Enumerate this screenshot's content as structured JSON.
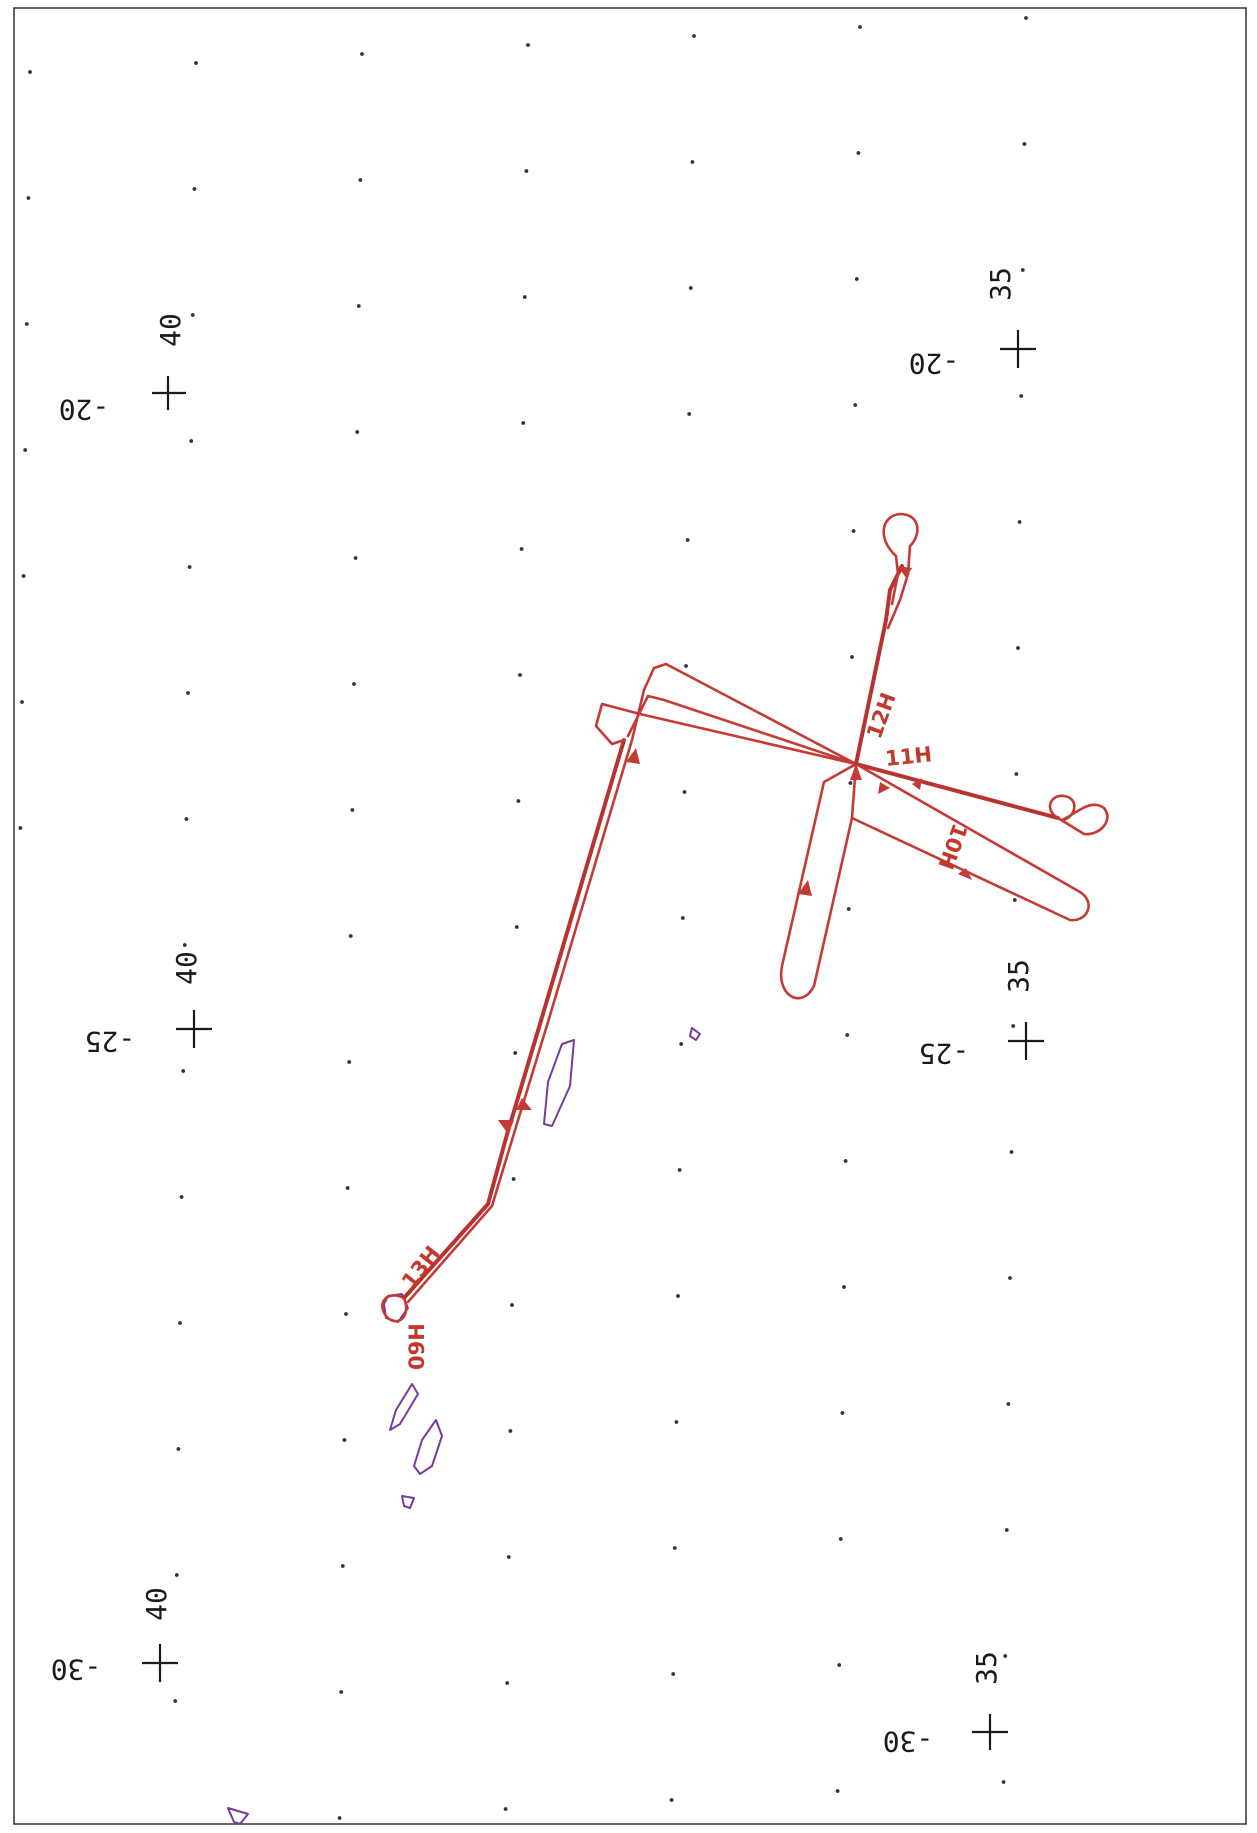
{
  "grid_labels": [
    {
      "id": "lat-m20-west",
      "text": "-20"
    },
    {
      "id": "lon-40-top",
      "text": "40"
    },
    {
      "id": "lat-m20-east",
      "text": "-20"
    },
    {
      "id": "lon-35-top",
      "text": "35"
    },
    {
      "id": "lat-m25-west",
      "text": "-25"
    },
    {
      "id": "lon-40-mid",
      "text": "40"
    },
    {
      "id": "lat-m25-east",
      "text": "-25"
    },
    {
      "id": "lon-35-mid",
      "text": "35"
    },
    {
      "id": "lat-m30-west",
      "text": "-30"
    },
    {
      "id": "lon-40-bottom",
      "text": "40"
    },
    {
      "id": "lat-m30-east",
      "text": "-30"
    },
    {
      "id": "lon-35-bottom",
      "text": "35"
    }
  ],
  "time_labels": {
    "h12": "12H",
    "h11": "11H",
    "h10": "10H",
    "h13": "13H",
    "h09": "09H"
  },
  "colors": {
    "track": "#c43a35",
    "contour": "#7a3a9a",
    "grid": "#1a1a1a",
    "background": "#ffffff"
  }
}
